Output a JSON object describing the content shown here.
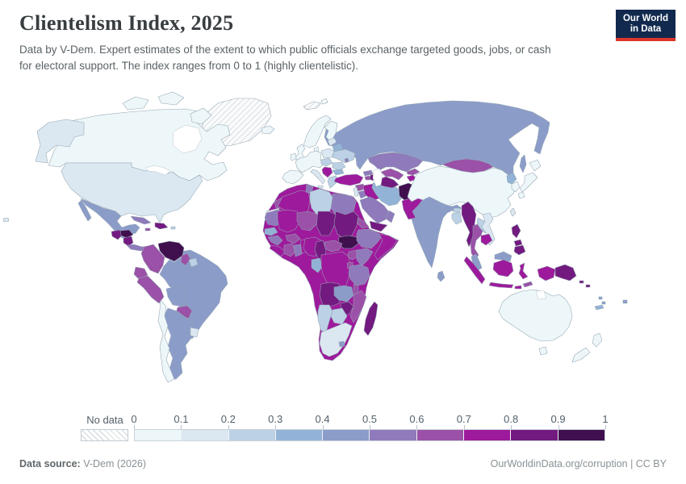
{
  "header": {
    "title": "Clientelism Index, 2025",
    "subtitle_line1": "Data by V-Dem. Expert estimates of the extent to which public officials exchange targeted goods, jobs, or cash",
    "subtitle_line2": "for electoral support. The index ranges from 0 to 1 (highly clientelistic).",
    "logo": {
      "line1": "Our World",
      "line2": "in Data",
      "bg_color": "#12294e",
      "accent_color": "#dc352c"
    }
  },
  "legend": {
    "no_data_label": "No data",
    "ticks": [
      "0",
      "0.1",
      "0.2",
      "0.3",
      "0.4",
      "0.5",
      "0.6",
      "0.7",
      "0.8",
      "0.9",
      "1"
    ],
    "bucket_colors": [
      "#edf6f9",
      "#dce8f1",
      "#bcd1e5",
      "#93b3d6",
      "#8b9cc9",
      "#8f7abb",
      "#9b51a7",
      "#9e1a9c",
      "#731a80",
      "#40104e"
    ],
    "bucket_ranges": [
      "0-0.1",
      "0.1-0.2",
      "0.2-0.3",
      "0.3-0.4",
      "0.4-0.5",
      "0.5-0.6",
      "0.6-0.7",
      "0.7-0.8",
      "0.8-0.9",
      "0.9-1"
    ]
  },
  "footer": {
    "source_label": "Data source:",
    "source_value": "V-Dem (2026)",
    "right_text": "OurWorldinData.org/corruption | CC BY"
  },
  "chart_data": {
    "type": "choropleth",
    "title": "Clientelism Index, 2025",
    "value_range": [
      0,
      1
    ],
    "legend_position": "bottom",
    "no_data_regions": [
      "Greenland",
      "Svalbard",
      "Western Sahara"
    ],
    "countries": {
      "greenland": {
        "range": "no data",
        "color": "no-data"
      },
      "svalbard": {
        "range": "no data",
        "color": "no-data"
      },
      "western-sahara": {
        "range": "no data",
        "color": "no-data"
      },
      "canada": {
        "range": "0-0.1",
        "color": "#edf6f9"
      },
      "usa": {
        "range": "0.1-0.2",
        "color": "#dce8f1"
      },
      "mexico": {
        "range": "0.4-0.5",
        "color": "#8b9cc9"
      },
      "guatemala": {
        "range": "0.8-0.9",
        "color": "#731a80"
      },
      "honduras": {
        "range": "0.9-1",
        "color": "#40104e"
      },
      "nicaragua": {
        "range": "0.8-0.9",
        "color": "#731a80"
      },
      "costa-rica-panama": {
        "range": "0.5-0.6",
        "color": "#8f7abb"
      },
      "cuba": {
        "range": "0.5-0.6",
        "color": "#8f7abb"
      },
      "hispaniola": {
        "range": "0.8-0.9",
        "color": "#731a80"
      },
      "jamaica": {
        "range": "0.6-0.7",
        "color": "#9b51a7"
      },
      "puerto-rico": {
        "range": "0.2-0.3",
        "color": "#bcd1e5"
      },
      "venezuela": {
        "range": "0.9-1",
        "color": "#40104e"
      },
      "colombia": {
        "range": "0.6-0.7",
        "color": "#9b51a7"
      },
      "ecuador": {
        "range": "0.6-0.7",
        "color": "#9b51a7"
      },
      "peru": {
        "range": "0.6-0.7",
        "color": "#9b51a7"
      },
      "guyana": {
        "range": "0.6-0.7",
        "color": "#9b51a7"
      },
      "suriname": {
        "range": "0.2-0.3",
        "color": "#bcd1e5"
      },
      "brazil": {
        "range": "0.4-0.5",
        "color": "#8b9cc9"
      },
      "bolivia": {
        "range": "0.4-0.5",
        "color": "#8b9cc9"
      },
      "paraguay": {
        "range": "0.6-0.7",
        "color": "#9b51a7"
      },
      "argentina": {
        "range": "0.4-0.5",
        "color": "#8b9cc9"
      },
      "uruguay": {
        "range": "0.1-0.2",
        "color": "#dce8f1"
      },
      "chile": {
        "range": "0-0.1",
        "color": "#edf6f9"
      },
      "iceland": {
        "range": "0-0.1",
        "color": "#edf6f9"
      },
      "uk": {
        "range": "0-0.1",
        "color": "#edf6f9"
      },
      "ireland": {
        "range": "0-0.1",
        "color": "#edf6f9"
      },
      "norway-sweden": {
        "range": "0-0.1",
        "color": "#edf6f9"
      },
      "finland": {
        "range": "0-0.1",
        "color": "#edf6f9"
      },
      "denmark": {
        "range": "0-0.1",
        "color": "#edf6f9"
      },
      "west-europe": {
        "range": "0-0.1",
        "color": "#edf6f9"
      },
      "iberia": {
        "range": "0-0.1",
        "color": "#edf6f9"
      },
      "italy": {
        "range": "0.1-0.2",
        "color": "#dce8f1"
      },
      "poland": {
        "range": "0.1-0.2",
        "color": "#dce8f1"
      },
      "czech-hungary": {
        "range": "0.2-0.3",
        "color": "#bcd1e5"
      },
      "baltics": {
        "range": "0.1-0.2",
        "color": "#dce8f1"
      },
      "belarus": {
        "range": "0.3-0.4",
        "color": "#93b3d6"
      },
      "ukraine": {
        "range": "0.2-0.3",
        "color": "#bcd1e5"
      },
      "moldova": {
        "range": "0.5-0.6",
        "color": "#8f7abb"
      },
      "romania": {
        "range": "0.2-0.3",
        "color": "#bcd1e5"
      },
      "balkans": {
        "range": "0.7-0.8",
        "color": "#9e1a9c"
      },
      "bulgaria": {
        "range": "0.3-0.4",
        "color": "#93b3d6"
      },
      "greece": {
        "range": "0.2-0.3",
        "color": "#bcd1e5"
      },
      "russia": {
        "range": "0.4-0.5",
        "color": "#8b9cc9"
      },
      "turkey": {
        "range": "0.7-0.8",
        "color": "#9e1a9c"
      },
      "georgia": {
        "range": "0.5-0.6",
        "color": "#8f7abb"
      },
      "armenia": {
        "range": "0.6-0.7",
        "color": "#9b51a7"
      },
      "azerbaijan": {
        "range": "0.8-0.9",
        "color": "#731a80"
      },
      "syria": {
        "range": "0.6-0.7",
        "color": "#9b51a7"
      },
      "lebanon-israel": {
        "range": "0.1-0.2",
        "color": "#dce8f1"
      },
      "jordan": {
        "range": "0.5-0.6",
        "color": "#8f7abb"
      },
      "iraq": {
        "range": "0.7-0.8",
        "color": "#9e1a9c"
      },
      "iran": {
        "range": "0.3-0.4",
        "color": "#93b3d6"
      },
      "afghanistan": {
        "range": "0.9-1",
        "color": "#40104e"
      },
      "pakistan": {
        "range": "0.7-0.8",
        "color": "#9e1a9c"
      },
      "saudi-arabia": {
        "range": "0.5-0.6",
        "color": "#8f7abb"
      },
      "yemen": {
        "range": "0.8-0.9",
        "color": "#731a80"
      },
      "oman": {
        "range": "0.5-0.6",
        "color": "#8f7abb"
      },
      "kazakhstan": {
        "range": "0.5-0.6",
        "color": "#8f7abb"
      },
      "uzbekistan": {
        "range": "0.6-0.7",
        "color": "#9b51a7"
      },
      "turkmenistan": {
        "range": "0.8-0.9",
        "color": "#731a80"
      },
      "kyrgyzstan": {
        "range": "0.6-0.7",
        "color": "#9b51a7"
      },
      "tajikistan": {
        "range": "0.7-0.8",
        "color": "#9e1a9c"
      },
      "india": {
        "range": "0.4-0.5",
        "color": "#8b9cc9"
      },
      "nepal": {
        "range": "0.4-0.5",
        "color": "#8b9cc9"
      },
      "bhutan": {
        "range": "0.2-0.3",
        "color": "#bcd1e5"
      },
      "bangladesh": {
        "range": "0.2-0.3",
        "color": "#bcd1e5"
      },
      "sri-lanka": {
        "range": "0.4-0.5",
        "color": "#8b9cc9"
      },
      "china": {
        "range": "0-0.1",
        "color": "#edf6f9"
      },
      "taiwan": {
        "range": "0.1-0.2",
        "color": "#dce8f1"
      },
      "mongolia": {
        "range": "0.6-0.7",
        "color": "#9b51a7"
      },
      "north-korea": {
        "range": "0.3-0.4",
        "color": "#93b3d6"
      },
      "south-korea": {
        "range": "0-0.1",
        "color": "#edf6f9"
      },
      "japan": {
        "range": "0-0.1",
        "color": "#edf6f9"
      },
      "myanmar": {
        "range": "0.8-0.9",
        "color": "#731a80"
      },
      "thailand": {
        "range": "0.6-0.7",
        "color": "#9b51a7"
      },
      "laos": {
        "range": "0.2-0.3",
        "color": "#bcd1e5"
      },
      "vietnam": {
        "range": "0.1-0.2",
        "color": "#dce8f1"
      },
      "cambodia": {
        "range": "0.7-0.8",
        "color": "#9e1a9c"
      },
      "malaysia": {
        "range": "0.4-0.5",
        "color": "#8b9cc9"
      },
      "philippines": {
        "range": "0.8-0.9",
        "color": "#731a80"
      },
      "indonesia": {
        "range": "0.7-0.8",
        "color": "#9e1a9c"
      },
      "timor": {
        "range": "0.6-0.7",
        "color": "#9b51a7"
      },
      "papua-new-guinea": {
        "range": "0.8-0.9",
        "color": "#731a80"
      },
      "solomon-islands": {
        "range": "0.8-0.9",
        "color": "#731a80"
      },
      "vanuatu": {
        "range": "0.4-0.5",
        "color": "#8b9cc9"
      },
      "fiji": {
        "range": "0.4-0.5",
        "color": "#8b9cc9"
      },
      "new-caledonia": {
        "range": "0.3-0.4",
        "color": "#93b3d6"
      },
      "australia": {
        "range": "0-0.1",
        "color": "#edf6f9"
      },
      "new-zealand": {
        "range": "0-0.1",
        "color": "#edf6f9"
      },
      "central-africa": {
        "range": "0.7-0.8",
        "color": "#9e1a9c"
      },
      "morocco": {
        "range": "0.6-0.7",
        "color": "#9b51a7"
      },
      "algeria": {
        "range": "0.7-0.8",
        "color": "#9e1a9c"
      },
      "tunisia": {
        "range": "0.5-0.6",
        "color": "#8f7abb"
      },
      "libya": {
        "range": "0.2-0.3",
        "color": "#bcd1e5"
      },
      "egypt": {
        "range": "0.5-0.6",
        "color": "#8f7abb"
      },
      "mauritania": {
        "range": "0.5-0.6",
        "color": "#8f7abb"
      },
      "mali": {
        "range": "0.7-0.8",
        "color": "#9e1a9c"
      },
      "niger": {
        "range": "0.6-0.7",
        "color": "#9b51a7"
      },
      "chad": {
        "range": "0.8-0.9",
        "color": "#731a80"
      },
      "sudan": {
        "range": "0.8-0.9",
        "color": "#731a80"
      },
      "south-sudan": {
        "range": "0.9-1",
        "color": "#40104e"
      },
      "eritrea": {
        "range": "0.6-0.7",
        "color": "#9b51a7"
      },
      "ethiopia": {
        "range": "0.5-0.6",
        "color": "#8f7abb"
      },
      "somalia": {
        "range": "0.7-0.8",
        "color": "#9e1a9c"
      },
      "senegal": {
        "range": "0.3-0.4",
        "color": "#93b3d6"
      },
      "guinea": {
        "range": "0.5-0.6",
        "color": "#8f7abb"
      },
      "sierra-leone-liberia": {
        "range": "0.7-0.8",
        "color": "#9e1a9c"
      },
      "ivory-coast": {
        "range": "0.6-0.7",
        "color": "#9b51a7"
      },
      "ghana": {
        "range": "0.5-0.6",
        "color": "#8f7abb"
      },
      "burkina-faso": {
        "range": "0.6-0.7",
        "color": "#9b51a7"
      },
      "benin-togo": {
        "range": "0.7-0.8",
        "color": "#9e1a9c"
      },
      "nigeria": {
        "range": "0.7-0.8",
        "color": "#9e1a9c"
      },
      "cameroon": {
        "range": "0.8-0.9",
        "color": "#731a80"
      },
      "central-african-republic": {
        "range": "0.6-0.7",
        "color": "#9b51a7"
      },
      "gabon-congo": {
        "range": "0.3-0.4",
        "color": "#93b3d6"
      },
      "drc": {
        "range": "0.7-0.8",
        "color": "#9e1a9c"
      },
      "uganda": {
        "range": "0.6-0.7",
        "color": "#9b51a7"
      },
      "kenya": {
        "range": "0.5-0.6",
        "color": "#8f7abb"
      },
      "rwanda-burundi": {
        "range": "0.6-0.7",
        "color": "#9b51a7"
      },
      "tanzania": {
        "range": "0.5-0.6",
        "color": "#8f7abb"
      },
      "angola": {
        "range": "0.8-0.9",
        "color": "#731a80"
      },
      "zambia": {
        "range": "0.4-0.5",
        "color": "#8b9cc9"
      },
      "malawi": {
        "range": "0.6-0.7",
        "color": "#9b51a7"
      },
      "mozambique": {
        "range": "0.6-0.7",
        "color": "#9b51a7"
      },
      "zimbabwe": {
        "range": "0.8-0.9",
        "color": "#731a80"
      },
      "botswana": {
        "range": "0.2-0.3",
        "color": "#bcd1e5"
      },
      "namibia": {
        "range": "0.2-0.3",
        "color": "#bcd1e5"
      },
      "south-africa": {
        "range": "0.1-0.2",
        "color": "#dce8f1"
      },
      "lesotho": {
        "range": "0.4-0.5",
        "color": "#8b9cc9"
      },
      "madagascar": {
        "range": "0.8-0.9",
        "color": "#731a80"
      }
    }
  }
}
